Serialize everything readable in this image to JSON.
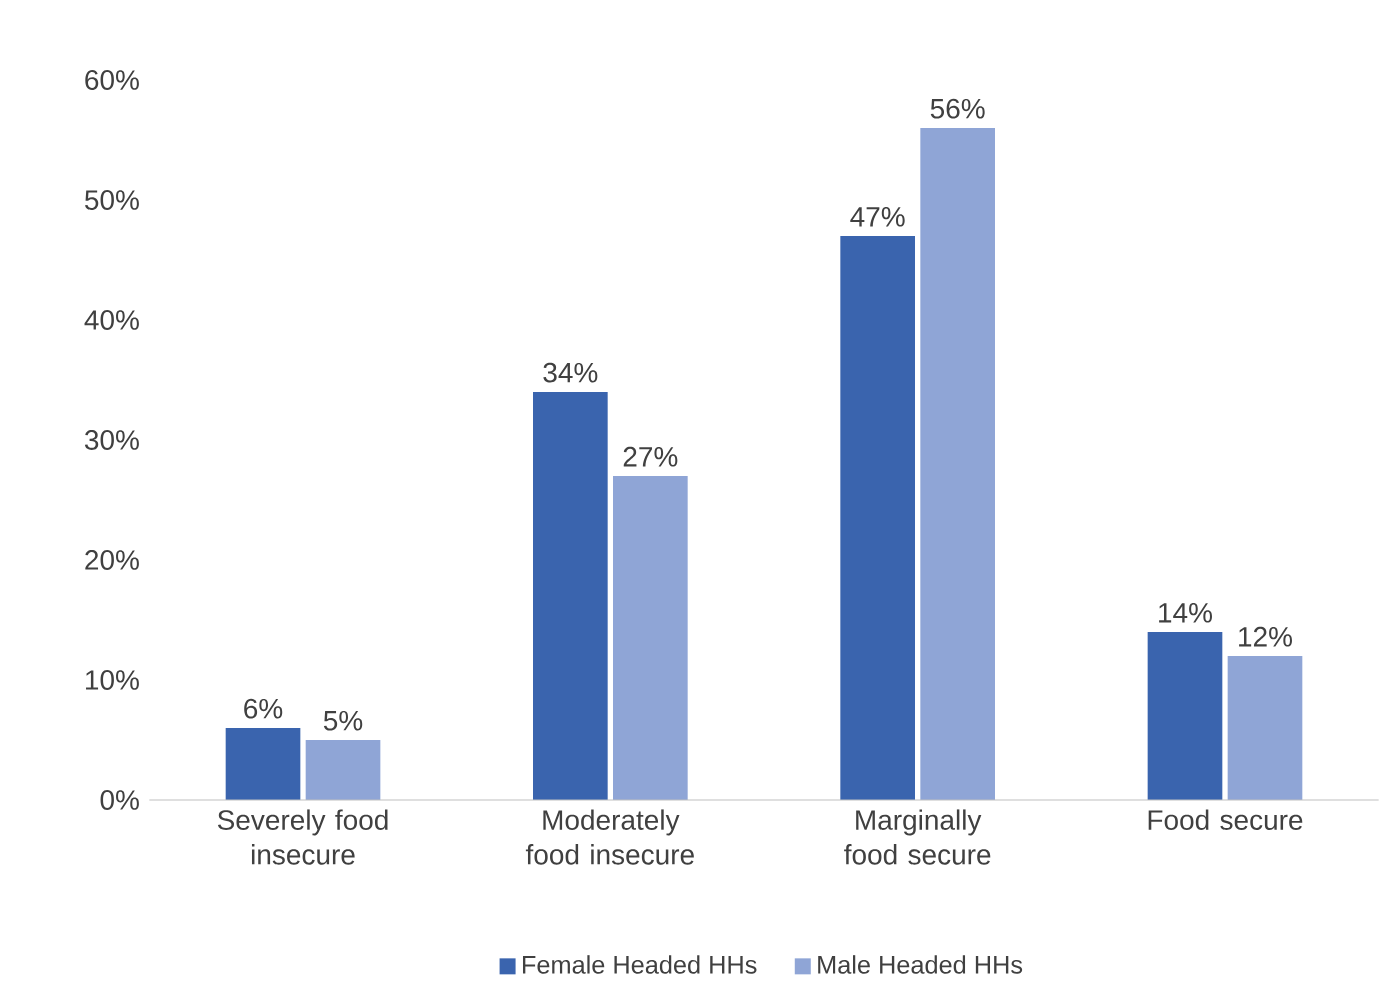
{
  "chart_data": {
    "type": "bar",
    "categories": [
      "Severely food insecure",
      "Moderately food insecure",
      "Marginally food secure",
      "Food secure"
    ],
    "series": [
      {
        "name": "Female Headed HHs",
        "color": "#3a64ae",
        "values": [
          6,
          34,
          47,
          14
        ],
        "value_labels": [
          "6%",
          "34%",
          "47%",
          "14%"
        ]
      },
      {
        "name": "Male Headed HHs",
        "color": "#8fa5d6",
        "values": [
          5,
          27,
          56,
          12
        ],
        "value_labels": [
          "5%",
          "27%",
          "56%",
          "12%"
        ]
      }
    ],
    "ylim": [
      0,
      60
    ],
    "yticks": [
      {
        "value": 0,
        "label": "0%"
      },
      {
        "value": 10,
        "label": "10%"
      },
      {
        "value": 20,
        "label": "20%"
      },
      {
        "value": 30,
        "label": "30%"
      },
      {
        "value": 40,
        "label": "40%"
      },
      {
        "value": 50,
        "label": "50%"
      },
      {
        "value": 60,
        "label": "60%"
      }
    ],
    "grid": false,
    "legend": "bottom"
  }
}
